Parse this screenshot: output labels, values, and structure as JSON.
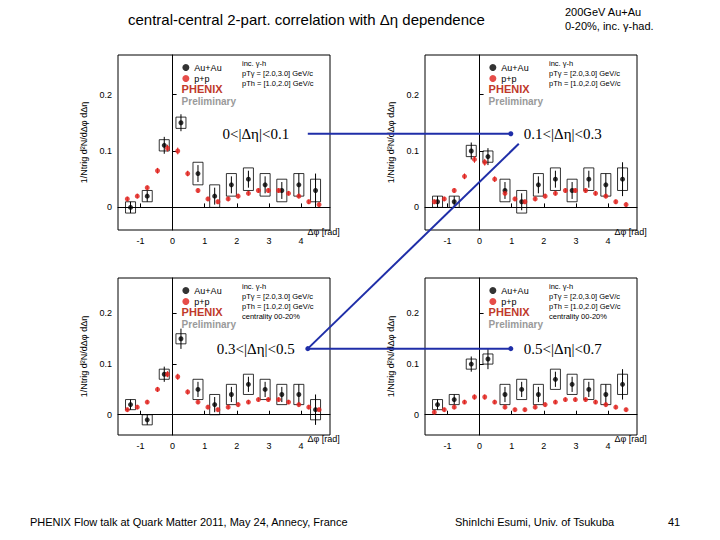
{
  "slide": {
    "title": "central-central 2-part. correlation with Δη dependence",
    "subtitle": [
      "200GeV Au+Au",
      "0-20%, inc. γ-had."
    ],
    "footer_left": "PHENIX Flow talk at Quark Matter 2011, May 24, Annecy, France",
    "footer_right": "ShinIchi Esumi, Univ. of Tsukuba",
    "page": 41
  },
  "chart_data": [
    {
      "type": "scatter",
      "title": "0<|Δη|<0.1",
      "x_label": "Δφ [rad]",
      "y_label": "1/Ntrig d²N/dΔφ dΔη",
      "annotations": [
        "inc. γ-h",
        "pTγ = [2.0,3.0] GeV/c",
        "pTh = [1.0,2.0] GeV/c"
      ],
      "logo": [
        "PHENIX",
        "Preliminary"
      ],
      "xlim": [
        -1.7,
        4.9
      ],
      "ylim": [
        -0.04,
        0.27
      ],
      "xticks": [
        -1,
        0,
        1,
        2,
        3,
        4
      ],
      "yticks": [
        0,
        0.1,
        0.2
      ],
      "grid": false,
      "legend": "upper center",
      "series": [
        {
          "name": "Au+Au",
          "color": "#000000",
          "marker": "circle",
          "x": [
            -1.31,
            -0.79,
            -0.26,
            0.26,
            0.79,
            1.31,
            1.83,
            2.36,
            2.88,
            3.4,
            3.93,
            4.45
          ],
          "values": [
            0.0,
            0.02,
            0.11,
            0.15,
            0.06,
            0.02,
            0.04,
            0.05,
            0.04,
            0.03,
            0.04,
            0.03
          ],
          "errors": [
            0.01,
            0.01,
            0.015,
            0.015,
            0.015,
            0.015,
            0.015,
            0.015,
            0.015,
            0.015,
            0.02,
            0.03
          ],
          "sys_errors": [
            0.01,
            0.01,
            0.01,
            0.01,
            0.02,
            0.02,
            0.02,
            0.02,
            0.02,
            0.02,
            0.02,
            0.02
          ]
        },
        {
          "name": "p+p",
          "color": "#e0201b",
          "marker": "circle",
          "x": [
            -1.41,
            -1.1,
            -0.79,
            -0.47,
            -0.16,
            0.16,
            0.47,
            0.79,
            1.1,
            1.41,
            1.73,
            2.04,
            2.36,
            2.67,
            2.98,
            3.3,
            3.61,
            3.93,
            4.24,
            4.56
          ],
          "values": [
            0.015,
            0.02,
            0.035,
            0.065,
            0.105,
            0.1,
            0.06,
            0.03,
            0.015,
            0.01,
            0.015,
            0.02,
            0.025,
            0.03,
            0.03,
            0.03,
            0.025,
            0.02,
            0.01,
            0.005
          ],
          "errors": [
            0.004,
            0.004,
            0.004,
            0.005,
            0.006,
            0.006,
            0.005,
            0.004,
            0.004,
            0.004,
            0.004,
            0.004,
            0.004,
            0.004,
            0.004,
            0.004,
            0.004,
            0.004,
            0.004,
            0.004
          ]
        }
      ]
    },
    {
      "type": "scatter",
      "title": "0.1<|Δη|<0.3",
      "x_label": "Δφ [rad]",
      "y_label": "1/Ntrig d²N/dΔφ dΔη",
      "annotations": [
        "inc. γ-h",
        "pTγ = [2.0,3.0] GeV/c",
        "pTh = [1.0,2.0] GeV/c"
      ],
      "logo": [
        "PHENIX",
        "Preliminary"
      ],
      "xlim": [
        -1.7,
        4.9
      ],
      "ylim": [
        -0.04,
        0.27
      ],
      "xticks": [
        -1,
        0,
        1,
        2,
        3,
        4
      ],
      "yticks": [
        0,
        0.1,
        0.2
      ],
      "grid": false,
      "legend": "upper center",
      "series": [
        {
          "name": "Au+Au",
          "color": "#000000",
          "marker": "circle",
          "x": [
            -1.31,
            -0.79,
            -0.26,
            0.26,
            0.79,
            1.31,
            1.83,
            2.36,
            2.88,
            3.4,
            3.93,
            4.45
          ],
          "values": [
            0.01,
            0.01,
            0.1,
            0.09,
            0.03,
            0.01,
            0.04,
            0.05,
            0.03,
            0.05,
            0.04,
            0.05
          ],
          "errors": [
            0.01,
            0.01,
            0.015,
            0.015,
            0.015,
            0.015,
            0.015,
            0.015,
            0.015,
            0.015,
            0.02,
            0.03
          ],
          "sys_errors": [
            0.01,
            0.01,
            0.01,
            0.01,
            0.02,
            0.02,
            0.02,
            0.02,
            0.02,
            0.02,
            0.02,
            0.02
          ]
        },
        {
          "name": "p+p",
          "color": "#e0201b",
          "marker": "circle",
          "x": [
            -1.41,
            -1.1,
            -0.79,
            -0.47,
            -0.16,
            0.16,
            0.47,
            0.79,
            1.1,
            1.41,
            1.73,
            2.04,
            2.36,
            2.67,
            2.98,
            3.3,
            3.61,
            3.93,
            4.24,
            4.56
          ],
          "values": [
            0.01,
            0.015,
            0.03,
            0.055,
            0.085,
            0.08,
            0.05,
            0.025,
            0.015,
            0.01,
            0.015,
            0.02,
            0.025,
            0.03,
            0.03,
            0.03,
            0.025,
            0.02,
            0.01,
            0.005
          ],
          "errors": [
            0.004,
            0.004,
            0.004,
            0.005,
            0.006,
            0.006,
            0.005,
            0.004,
            0.004,
            0.004,
            0.004,
            0.004,
            0.004,
            0.004,
            0.004,
            0.004,
            0.004,
            0.004,
            0.004,
            0.004
          ]
        }
      ]
    },
    {
      "type": "scatter",
      "title": "0.3<|Δη|<0.5",
      "x_label": "Δφ [rad]",
      "y_label": "1/Ntrig d²N/dΔφ dΔη",
      "annotations": [
        "inc. γ-h",
        "pTγ = [2.0,3.0] GeV/c",
        "pTh = [1.0,2.0] GeV/c",
        "centrality 00-20%"
      ],
      "logo": [
        "PHENIX",
        "Preliminary"
      ],
      "xlim": [
        -1.7,
        4.9
      ],
      "ylim": [
        -0.04,
        0.27
      ],
      "xticks": [
        -1,
        0,
        1,
        2,
        3,
        4
      ],
      "yticks": [
        0,
        0.1,
        0.2
      ],
      "grid": false,
      "legend": "upper center",
      "series": [
        {
          "name": "Au+Au",
          "color": "#000000",
          "marker": "circle",
          "x": [
            -1.31,
            -0.79,
            -0.26,
            0.26,
            0.79,
            1.31,
            1.83,
            2.36,
            2.88,
            3.4,
            3.93,
            4.45
          ],
          "values": [
            0.02,
            -0.01,
            0.08,
            0.15,
            0.05,
            0.02,
            0.04,
            0.06,
            0.05,
            0.04,
            0.04,
            0.01
          ],
          "errors": [
            0.01,
            0.01,
            0.015,
            0.02,
            0.015,
            0.015,
            0.015,
            0.015,
            0.015,
            0.015,
            0.02,
            0.03
          ],
          "sys_errors": [
            0.01,
            0.01,
            0.01,
            0.01,
            0.02,
            0.02,
            0.02,
            0.02,
            0.02,
            0.02,
            0.02,
            0.02
          ]
        },
        {
          "name": "p+p",
          "color": "#e0201b",
          "marker": "circle",
          "x": [
            -1.41,
            -1.1,
            -0.79,
            -0.47,
            -0.16,
            0.16,
            0.47,
            0.79,
            1.1,
            1.41,
            1.73,
            2.04,
            2.36,
            2.67,
            2.98,
            3.3,
            3.61,
            3.93,
            4.24,
            4.56
          ],
          "values": [
            0.01,
            0.015,
            0.025,
            0.05,
            0.08,
            0.075,
            0.045,
            0.025,
            0.015,
            0.01,
            0.015,
            0.02,
            0.025,
            0.03,
            0.03,
            0.03,
            0.025,
            0.02,
            0.015,
            0.01
          ],
          "errors": [
            0.004,
            0.004,
            0.004,
            0.005,
            0.006,
            0.006,
            0.005,
            0.004,
            0.004,
            0.004,
            0.004,
            0.004,
            0.004,
            0.004,
            0.004,
            0.004,
            0.004,
            0.004,
            0.004,
            0.004
          ]
        }
      ]
    },
    {
      "type": "scatter",
      "title": "0.5<|Δη|<0.7",
      "x_label": "Δφ [rad]",
      "y_label": "1/Ntrig d²N/dΔφ dΔη",
      "annotations": [
        "inc. γ-h",
        "pTγ = [2.0,3.0] GeV/c",
        "pTh = [1.0,2.0] GeV/c",
        "centrality 00-20%"
      ],
      "logo": [
        "PHENIX",
        "Preliminary"
      ],
      "xlim": [
        -1.7,
        4.9
      ],
      "ylim": [
        -0.04,
        0.27
      ],
      "xticks": [
        -1,
        0,
        1,
        2,
        3,
        4
      ],
      "yticks": [
        0,
        0.1,
        0.2
      ],
      "grid": false,
      "legend": "upper center",
      "series": [
        {
          "name": "Au+Au",
          "color": "#000000",
          "marker": "circle",
          "x": [
            -1.31,
            -0.79,
            -0.26,
            0.26,
            0.79,
            1.31,
            1.83,
            2.36,
            2.88,
            3.4,
            3.93,
            4.45
          ],
          "values": [
            0.02,
            0.03,
            0.1,
            0.11,
            0.04,
            0.05,
            0.04,
            0.07,
            0.06,
            0.05,
            0.04,
            0.06
          ],
          "errors": [
            0.01,
            0.01,
            0.015,
            0.02,
            0.015,
            0.015,
            0.015,
            0.015,
            0.015,
            0.015,
            0.02,
            0.03
          ],
          "sys_errors": [
            0.01,
            0.01,
            0.01,
            0.01,
            0.02,
            0.02,
            0.02,
            0.02,
            0.02,
            0.02,
            0.02,
            0.02
          ]
        },
        {
          "name": "p+p",
          "color": "#e0201b",
          "marker": "circle",
          "x": [
            -1.41,
            -1.1,
            -0.79,
            -0.47,
            -0.16,
            0.16,
            0.47,
            0.79,
            1.1,
            1.41,
            1.73,
            2.04,
            2.36,
            2.67,
            2.98,
            3.3,
            3.61,
            3.93,
            4.24,
            4.56
          ],
          "values": [
            0.005,
            0.01,
            0.015,
            0.025,
            0.035,
            0.035,
            0.025,
            0.015,
            0.01,
            0.01,
            0.015,
            0.02,
            0.025,
            0.03,
            0.03,
            0.03,
            0.025,
            0.02,
            0.015,
            0.01
          ],
          "errors": [
            0.004,
            0.004,
            0.004,
            0.004,
            0.005,
            0.005,
            0.004,
            0.004,
            0.004,
            0.004,
            0.004,
            0.004,
            0.004,
            0.004,
            0.004,
            0.004,
            0.004,
            0.004,
            0.004,
            0.004
          ]
        }
      ]
    }
  ]
}
